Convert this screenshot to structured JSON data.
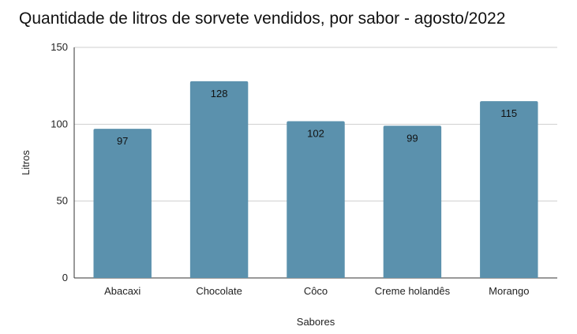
{
  "chart_data": {
    "type": "bar",
    "title": "Quantidade de litros de sorvete vendidos, por sabor - agosto/2022",
    "xlabel": "Sabores",
    "ylabel": "Litros",
    "categories": [
      "Abacaxi",
      "Chocolate",
      "Côco",
      "Creme holandês",
      "Morango"
    ],
    "values": [
      97,
      128,
      102,
      99,
      115
    ],
    "ylim": [
      0,
      150
    ],
    "yticks": [
      0,
      50,
      100,
      150
    ],
    "grid": true,
    "legend": "none",
    "bar_color": "#5b91ad",
    "data_labels": true
  }
}
